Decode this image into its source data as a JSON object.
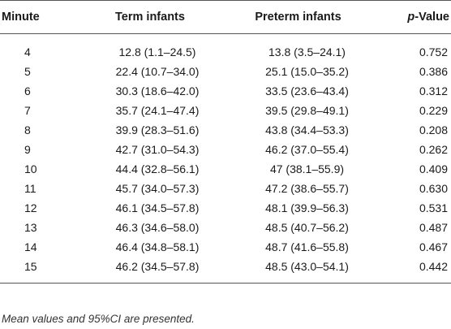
{
  "table": {
    "headers": {
      "minute": "Minute",
      "term": "Term infants",
      "preterm": "Preterm infants",
      "p_italic": "p",
      "p_rest": "-Value"
    },
    "rows": [
      {
        "minute": "4",
        "term": "12.8 (1.1–24.5)",
        "preterm": "13.8 (3.5–24.1)",
        "p": "0.752"
      },
      {
        "minute": "5",
        "term": "22.4 (10.7–34.0)",
        "preterm": "25.1 (15.0–35.2)",
        "p": "0.386"
      },
      {
        "minute": "6",
        "term": "30.3 (18.6–42.0)",
        "preterm": "33.5 (23.6–43.4)",
        "p": "0.312"
      },
      {
        "minute": "7",
        "term": "35.7 (24.1–47.4)",
        "preterm": "39.5 (29.8–49.1)",
        "p": "0.229"
      },
      {
        "minute": "8",
        "term": "39.9 (28.3–51.6)",
        "preterm": "43.8 (34.4–53.3)",
        "p": "0.208"
      },
      {
        "minute": "9",
        "term": "42.7 (31.0–54.3)",
        "preterm": "46.2 (37.0–55.4)",
        "p": "0.262"
      },
      {
        "minute": "10",
        "term": "44.4 (32.8–56.1)",
        "preterm": "47 (38.1–55.9)",
        "p": "0.409"
      },
      {
        "minute": "11",
        "term": "45.7 (34.0–57.3)",
        "preterm": "47.2 (38.6–55.7)",
        "p": "0.630"
      },
      {
        "minute": "12",
        "term": "46.1 (34.5–57.8)",
        "preterm": "48.1 (39.9–56.3)",
        "p": "0.531"
      },
      {
        "minute": "13",
        "term": "46.3 (34.6–58.0)",
        "preterm": "48.5 (40.7–56.2)",
        "p": "0.487"
      },
      {
        "minute": "14",
        "term": "46.4 (34.8–58.1)",
        "preterm": "48.7 (41.6–55.8)",
        "p": "0.467"
      },
      {
        "minute": "15",
        "term": "46.2 (34.5–57.8)",
        "preterm": "48.5 (43.0–54.1)",
        "p": "0.442"
      }
    ]
  },
  "footnote": "Mean values and 95%CI are presented."
}
